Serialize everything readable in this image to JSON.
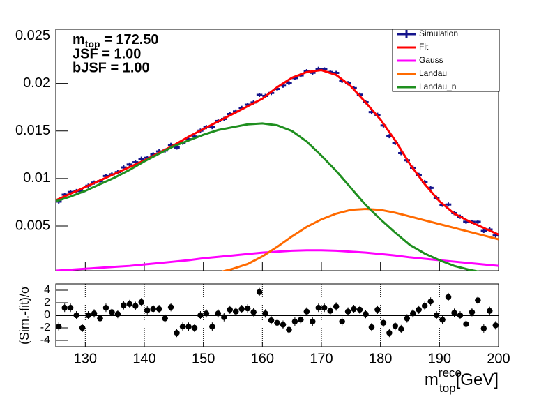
{
  "chart_data": [
    {
      "type": "line",
      "annotations": [
        {
          "main": "m",
          "sub": "top",
          "tail": " = 172.50"
        },
        "JSF = 1.00",
        "bJSF = 1.00"
      ],
      "xlim": [
        125,
        200
      ],
      "xticks": [
        130,
        140,
        150,
        160,
        170,
        180,
        190,
        200
      ],
      "ylim": [
        0.0003,
        0.0257
      ],
      "yticks": [
        0.005,
        0.01,
        0.015,
        0.02,
        0.025
      ],
      "legend": "top-right",
      "series": [
        {
          "name": "Simulation",
          "type": "errorbar",
          "color": "#14148c",
          "x": [
            125.5,
            126.5,
            127.5,
            128.5,
            129.5,
            130.5,
            131.5,
            132.5,
            133.5,
            134.5,
            135.5,
            136.5,
            137.5,
            138.5,
            139.5,
            140.5,
            141.5,
            142.5,
            143.5,
            144.5,
            145.5,
            146.5,
            147.5,
            148.5,
            149.5,
            150.5,
            151.5,
            152.5,
            153.5,
            154.5,
            155.5,
            156.5,
            157.5,
            158.5,
            159.5,
            160.5,
            161.5,
            162.5,
            163.5,
            164.5,
            165.5,
            166.5,
            167.5,
            168.5,
            169.5,
            170.5,
            171.5,
            172.5,
            173.5,
            174.5,
            175.5,
            176.5,
            177.5,
            178.5,
            179.5,
            180.5,
            181.5,
            182.5,
            183.5,
            184.5,
            185.5,
            186.5,
            187.5,
            188.5,
            189.5,
            190.5,
            191.5,
            192.5,
            193.5,
            194.5,
            195.5,
            196.5,
            197.5,
            198.5,
            199.5
          ],
          "values": [
            0.00757,
            0.0083,
            0.00858,
            0.00868,
            0.00866,
            0.00924,
            0.00957,
            0.00972,
            0.01026,
            0.01044,
            0.01067,
            0.01116,
            0.01147,
            0.01171,
            0.01208,
            0.01218,
            0.01253,
            0.01285,
            0.01294,
            0.01354,
            0.01326,
            0.01377,
            0.01413,
            0.01442,
            0.01504,
            0.01541,
            0.01541,
            0.01605,
            0.01627,
            0.01678,
            0.01705,
            0.01743,
            0.01777,
            0.018,
            0.0188,
            0.01869,
            0.019,
            0.01942,
            0.01977,
            0.02005,
            0.02057,
            0.02085,
            0.02129,
            0.02113,
            0.02154,
            0.02148,
            0.02121,
            0.02111,
            0.02027,
            0.02003,
            0.01951,
            0.01882,
            0.01803,
            0.01699,
            0.0167,
            0.01558,
            0.01446,
            0.01374,
            0.01267,
            0.01192,
            0.01113,
            0.01038,
            0.00963,
            0.00901,
            0.00796,
            0.00723,
            0.00726,
            0.00636,
            0.00598,
            0.00545,
            0.00544,
            0.00544,
            0.00448,
            0.00463,
            0.004
          ]
        },
        {
          "name": "Fit",
          "type": "line",
          "color": "#ff0000",
          "x": [
            125,
            127.5,
            130,
            132.5,
            135,
            137.5,
            140,
            142.5,
            145,
            147.5,
            150,
            152.5,
            155,
            157.5,
            160,
            162.5,
            165,
            167.5,
            170,
            172.5,
            175,
            177.5,
            180,
            182.5,
            185,
            187.5,
            190,
            192.5,
            195,
            197.5,
            200
          ],
          "values": [
            0.0077,
            0.0084,
            0.0091,
            0.0098,
            0.0105,
            0.0112,
            0.0119,
            0.0127,
            0.0135,
            0.0144,
            0.0152,
            0.016,
            0.0168,
            0.0176,
            0.0184,
            0.0196,
            0.0206,
            0.0212,
            0.0214,
            0.0209,
            0.0197,
            0.018,
            0.0162,
            0.014,
            0.0115,
            0.0094,
            0.0076,
            0.0063,
            0.0055,
            0.0048,
            0.0041
          ]
        },
        {
          "name": "Gauss",
          "type": "line",
          "color": "#ff00ff",
          "x": [
            125,
            127.5,
            130,
            132.5,
            135,
            137.5,
            140,
            142.5,
            145,
            147.5,
            150,
            152.5,
            155,
            157.5,
            160,
            162.5,
            165,
            167.5,
            170,
            172.5,
            175,
            177.5,
            180,
            182.5,
            185,
            187.5,
            190,
            192.5,
            195,
            197.5,
            200
          ],
          "values": [
            0.0003,
            0.0004,
            0.0005,
            0.0006,
            0.0007,
            0.0008,
            0.00095,
            0.0011,
            0.00125,
            0.0014,
            0.0016,
            0.00175,
            0.0019,
            0.00205,
            0.0022,
            0.0023,
            0.0024,
            0.00245,
            0.00245,
            0.0024,
            0.0023,
            0.0022,
            0.00205,
            0.0019,
            0.0017,
            0.00155,
            0.0014,
            0.00125,
            0.0011,
            0.00095,
            0.0008
          ]
        },
        {
          "name": "Landau",
          "type": "line",
          "color": "#ff6a00",
          "x": [
            125,
            127.5,
            130,
            132.5,
            135,
            137.5,
            140,
            142.5,
            145,
            147.5,
            150,
            152.5,
            155,
            157.5,
            160,
            162.5,
            165,
            167.5,
            170,
            172.5,
            175,
            177.5,
            180,
            182.5,
            185,
            187.5,
            190,
            192.5,
            195,
            197.5,
            200
          ],
          "values": [
            null,
            null,
            null,
            null,
            null,
            null,
            null,
            null,
            null,
            null,
            0.0,
            0.0001,
            0.0005,
            0.001,
            0.0018,
            0.0028,
            0.0039,
            0.0049,
            0.0057,
            0.0063,
            0.0067,
            0.0068,
            0.0067,
            0.0064,
            0.006,
            0.0056,
            0.0052,
            0.0048,
            0.0044,
            0.004,
            0.0036
          ]
        },
        {
          "name": "Landau_n",
          "type": "line",
          "color": "#1f8f1f",
          "x": [
            125,
            127.5,
            130,
            132.5,
            135,
            137.5,
            140,
            142.5,
            145,
            147.5,
            150,
            152.5,
            155,
            157.5,
            160,
            162.5,
            165,
            167.5,
            170,
            172.5,
            175,
            177.5,
            180,
            182.5,
            185,
            187.5,
            190,
            192.5,
            195,
            197.5,
            200
          ],
          "values": [
            0.0076,
            0.0081,
            0.0087,
            0.0094,
            0.0101,
            0.0109,
            0.0118,
            0.0126,
            0.0134,
            0.014,
            0.0146,
            0.0151,
            0.0154,
            0.0157,
            0.0158,
            0.0156,
            0.015,
            0.0139,
            0.0124,
            0.0108,
            0.009,
            0.0072,
            0.0057,
            0.0043,
            0.003,
            0.0021,
            0.0014,
            0.0008,
            0.0004,
            0.0001,
            null
          ]
        }
      ]
    },
    {
      "type": "scatter",
      "y_label": "(Sim.-fit)/σ",
      "x_label": {
        "main": "m",
        "sup": "reco",
        "sub": "top",
        "tail": "[GeV]"
      },
      "xlim": [
        125,
        200
      ],
      "xticks": [
        130,
        140,
        150,
        160,
        170,
        180,
        190,
        200
      ],
      "ylim": [
        -5,
        5
      ],
      "yticks": [
        -4,
        -2,
        0,
        2,
        4
      ],
      "grid": true,
      "color": "#000000",
      "x": [
        125.5,
        126.5,
        127.5,
        128.5,
        129.5,
        130.5,
        131.5,
        132.5,
        133.5,
        134.5,
        135.5,
        136.5,
        137.5,
        138.5,
        139.5,
        140.5,
        141.5,
        142.5,
        143.5,
        144.5,
        145.5,
        146.5,
        147.5,
        148.5,
        149.5,
        150.5,
        151.5,
        152.5,
        153.5,
        154.5,
        155.5,
        156.5,
        157.5,
        158.5,
        159.5,
        160.5,
        161.5,
        162.5,
        163.5,
        164.5,
        165.5,
        166.5,
        167.5,
        168.5,
        169.5,
        170.5,
        171.5,
        172.5,
        173.5,
        174.5,
        175.5,
        176.5,
        177.5,
        178.5,
        179.5,
        180.5,
        181.5,
        182.5,
        183.5,
        184.5,
        185.5,
        186.5,
        187.5,
        188.5,
        189.5,
        190.5,
        191.5,
        192.5,
        193.5,
        194.5,
        195.5,
        196.5,
        197.5,
        198.5,
        199.5
      ],
      "values": [
        -1.8,
        1.2,
        1.2,
        0,
        -2,
        0,
        0.3,
        -0.5,
        1.2,
        0.5,
        0.2,
        1.6,
        1.8,
        1.5,
        2.1,
        0.8,
        1.0,
        1.0,
        -0.5,
        1.3,
        -2.8,
        -1.8,
        -1.8,
        -2.0,
        0,
        0.3,
        -1.8,
        0.3,
        -0.3,
        0.9,
        0.6,
        1.0,
        1.1,
        0.5,
        3.7,
        0.3,
        -0.8,
        -1.2,
        -1.5,
        -2.3,
        -1.0,
        -0.7,
        0.6,
        -1.0,
        1.2,
        1.2,
        0.7,
        1.4,
        -1.0,
        0.6,
        1.0,
        0.9,
        0.2,
        -1.9,
        0.9,
        -1.2,
        -2.8,
        -1.7,
        -2.2,
        -0.5,
        0.3,
        0.9,
        1.5,
        2.2,
        0.0,
        -0.7,
        2.9,
        0.4,
        0,
        -1.4,
        0.5,
        2.4,
        -2.1,
        0.7,
        -1.6
      ]
    }
  ]
}
